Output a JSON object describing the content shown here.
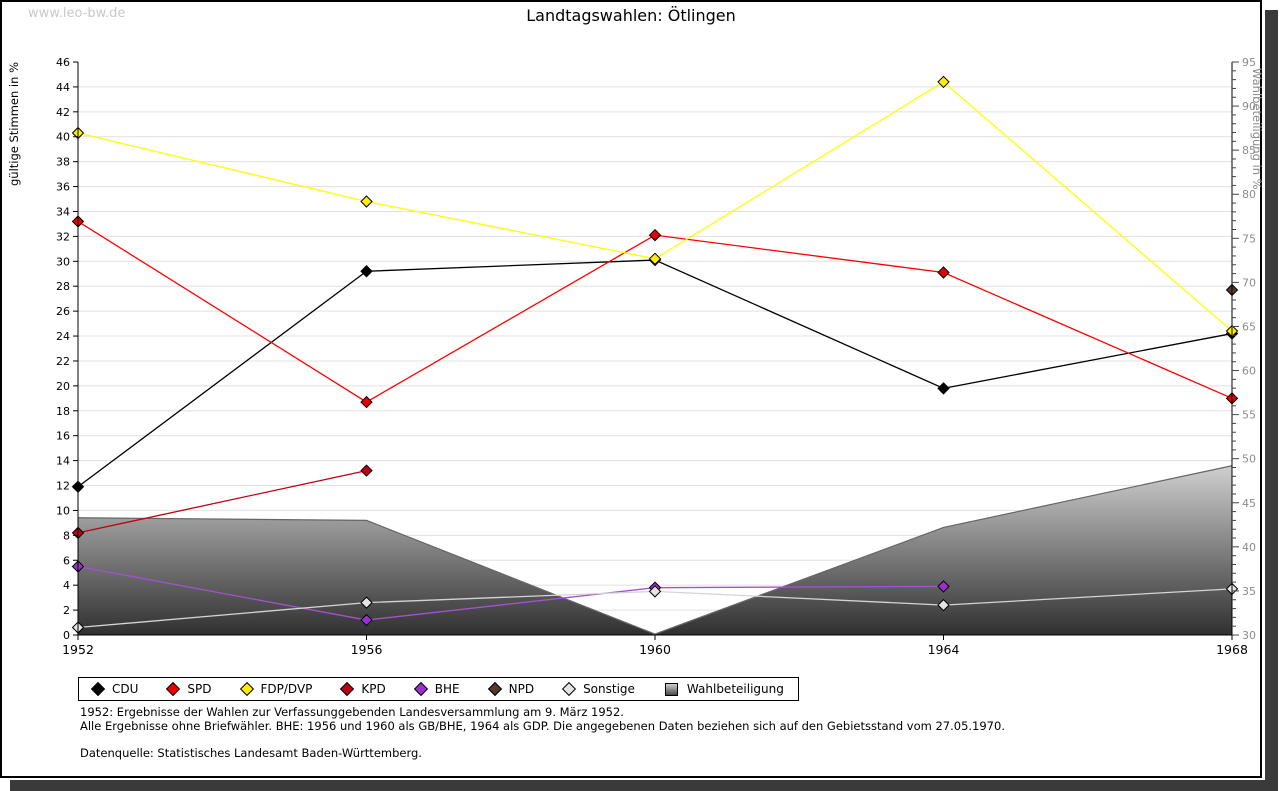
{
  "watermark": "www.leo-bw.de",
  "title": "Landtagswahlen: Ötlingen",
  "chart_data": {
    "type": "line",
    "title": "Landtagswahlen: Ötlingen",
    "x": [
      1952,
      1956,
      1960,
      1964,
      1968
    ],
    "left_axis": {
      "label": "gültige Stimmen in %",
      "min": 0,
      "max": 46,
      "tick_step": 2
    },
    "right_axis": {
      "label": "Wahlbeteiligung in %",
      "min": 30,
      "max": 95,
      "tick_step": 5,
      "minor_step": 1
    },
    "grid": true,
    "legend_position": "bottom",
    "series": [
      {
        "name": "CDU",
        "color": "#000000",
        "marker": "#000000",
        "values": [
          11.9,
          29.2,
          30.1,
          19.8,
          24.2
        ]
      },
      {
        "name": "SPD",
        "color": "#ff0000",
        "marker": "#e80000",
        "values": [
          33.2,
          18.7,
          32.1,
          29.1,
          19.0
        ]
      },
      {
        "name": "FDP/DVP",
        "color": "#ffff00",
        "marker": "#ffee00",
        "values": [
          40.3,
          34.8,
          30.2,
          44.4,
          24.4
        ]
      },
      {
        "name": "KPD",
        "color": "#c00010",
        "marker": "#c00010",
        "values": [
          8.2,
          13.2,
          null,
          null,
          null
        ]
      },
      {
        "name": "BHE",
        "color": "#a352d1",
        "marker": "#9932cc",
        "values": [
          5.5,
          1.2,
          3.8,
          3.9,
          null
        ]
      },
      {
        "name": "NPD",
        "color": "#53392b",
        "marker": "#53392b",
        "values": [
          null,
          null,
          null,
          null,
          27.7
        ]
      },
      {
        "name": "Sonstige",
        "color": "#d4d4d4",
        "marker": "#e4e4e4",
        "values": [
          0.6,
          2.6,
          3.5,
          2.4,
          3.7
        ]
      }
    ],
    "area_series": {
      "name": "Wahlbeteiligung",
      "axis": "right",
      "values": [
        43.3,
        43.0,
        30.1,
        42.2,
        49.2
      ],
      "fill_top": "#cfcfcf",
      "fill_bottom": "#303030",
      "edge": "#666666"
    },
    "render_order": [
      "KPD",
      "BHE",
      "Sonstige",
      "CDU",
      "SPD",
      "FDP/DVP",
      "NPD"
    ]
  },
  "legend": {
    "items": [
      {
        "label": "CDU",
        "color": "#000000",
        "shape": "diamond"
      },
      {
        "label": "SPD",
        "color": "#e80000",
        "shape": "diamond"
      },
      {
        "label": "FDP/DVP",
        "color": "#ffee00",
        "shape": "diamond"
      },
      {
        "label": "KPD",
        "color": "#c00010",
        "shape": "diamond"
      },
      {
        "label": "BHE",
        "color": "#9932cc",
        "shape": "diamond"
      },
      {
        "label": "NPD",
        "color": "#53392b",
        "shape": "diamond"
      },
      {
        "label": "Sonstige",
        "color": "#e4e4e4",
        "shape": "diamond"
      },
      {
        "label": "Wahlbeteiligung",
        "color": "#9a9a9a",
        "shape": "square"
      }
    ]
  },
  "footer": {
    "line1": "1952: Ergebnisse der Wahlen zur Verfassunggebenden Landesversammlung am 9. März 1952.",
    "line2": "Alle Ergebnisse ohne Briefwähler. BHE: 1956 und 1960 als GB/BHE, 1964 als GDP. Die angegebenen Daten beziehen sich auf den Gebietsstand vom 27.05.1970.",
    "source": "Datenquelle: Statistisches Landesamt Baden-Württemberg."
  }
}
